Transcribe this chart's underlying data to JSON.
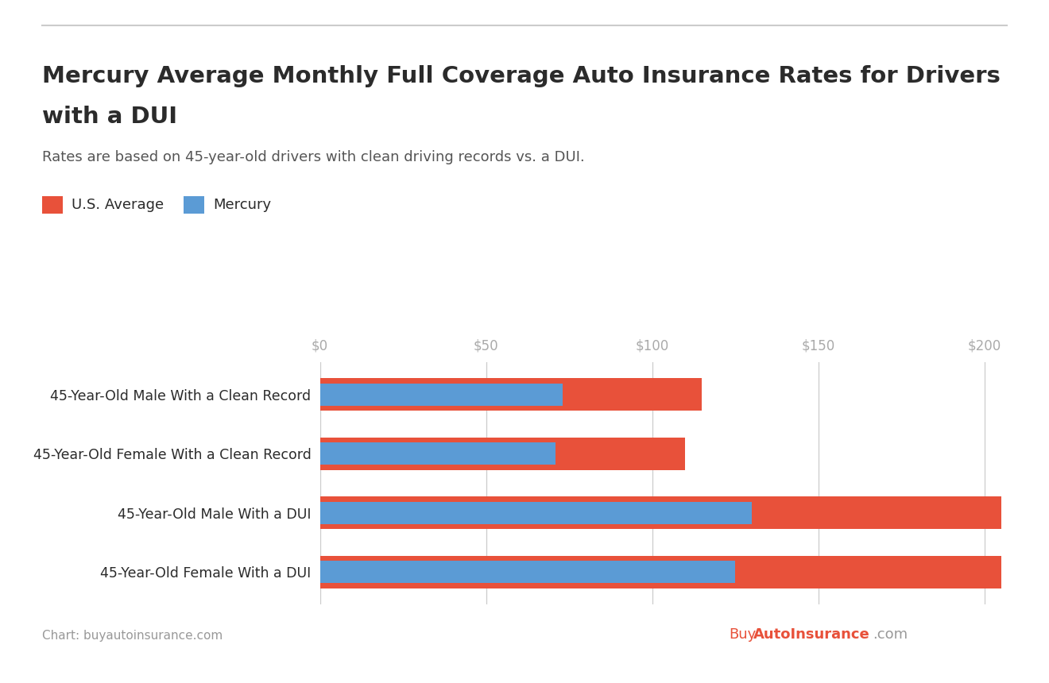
{
  "title_line1": "Mercury Average Monthly Full Coverage Auto Insurance Rates for Drivers",
  "title_line2": "with a DUI",
  "subtitle": "Rates are based on 45-year-old drivers with clean driving records vs. a DUI.",
  "categories": [
    "45-Year-Old Male With a Clean Record",
    "45-Year-Old Female With a Clean Record",
    "45-Year-Old Male With a DUI",
    "45-Year-Old Female With a DUI"
  ],
  "us_average": [
    115,
    110,
    205,
    205
  ],
  "mercury": [
    73,
    71,
    130,
    125
  ],
  "us_average_color": "#E8513A",
  "mercury_color": "#5B9BD5",
  "background_color": "#FFFFFF",
  "xlim_max": 210,
  "xticks": [
    0,
    50,
    100,
    150,
    200
  ],
  "xtick_labels": [
    "$0",
    "$50",
    "$100",
    "$150",
    "$200"
  ],
  "grid_color": "#CCCCCC",
  "legend_us_label": "U.S. Average",
  "legend_mercury_label": "Mercury",
  "footer_text": "Chart: buyautoinsurance.com",
  "footer_color": "#999999",
  "title_color": "#2B2B2B",
  "subtitle_color": "#555555",
  "axis_label_color": "#AAAAAA",
  "outer_bar_height": 0.55,
  "inner_bar_height": 0.38,
  "separator_color": "#CCCCCC",
  "watermark_buy_color": "#E8513A",
  "watermark_auto_color": "#E8513A",
  "watermark_com_color": "#999999"
}
